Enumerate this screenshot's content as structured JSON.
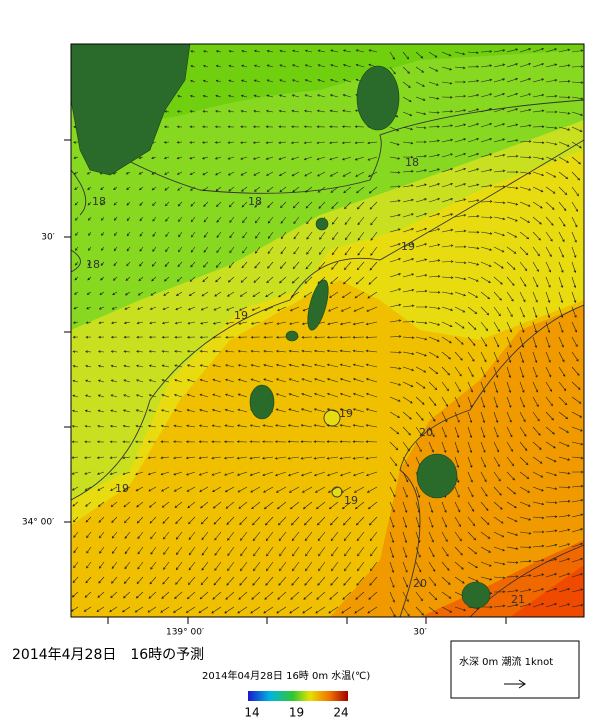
{
  "map": {
    "title": "2014年4月28日　16時の予測",
    "subtitle": "2014年04月28日 16時 0m 水温(℃)",
    "lat_labels": [
      "30′",
      "34° 00′"
    ],
    "lon_labels": [
      "139° 00′",
      "30′"
    ],
    "contour_labels": [
      "18",
      "18",
      "18",
      "18",
      "19",
      "19",
      "19",
      "19",
      "19",
      "20",
      "20",
      "21"
    ],
    "colorbar_ticks": [
      14,
      19,
      24
    ],
    "legend": "水深 0m 潮流 1knot"
  }
}
